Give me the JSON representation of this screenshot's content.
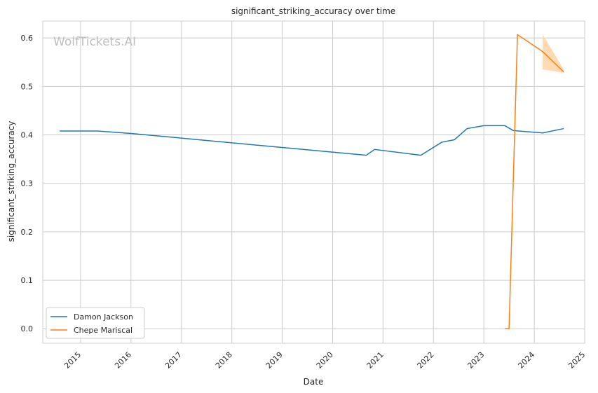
{
  "chart_data": {
    "type": "line",
    "title": "significant_striking_accuracy over time",
    "xlabel": "Date",
    "ylabel": "significant_striking_accuracy",
    "watermark": "WolfTickets.AI",
    "x_ticks": [
      "2015",
      "2016",
      "2017",
      "2018",
      "2019",
      "2020",
      "2021",
      "2022",
      "2023",
      "2024",
      "2025"
    ],
    "y_ticks": [
      "0.0",
      "0.1",
      "0.2",
      "0.3",
      "0.4",
      "0.5",
      "0.6"
    ],
    "xlim": [
      "2014-04",
      "2025-01"
    ],
    "ylim": [
      -0.03,
      0.635
    ],
    "grid": true,
    "legend_position": "lower-left",
    "series": [
      {
        "name": "Damon Jackson",
        "color": "#1f77b4",
        "points": [
          [
            "2014-08",
            0.408
          ],
          [
            "2015-05",
            0.408
          ],
          [
            "2016-01",
            0.403
          ],
          [
            "2020-09",
            0.358
          ],
          [
            "2020-11",
            0.37
          ],
          [
            "2021-10",
            0.358
          ],
          [
            "2022-03",
            0.385
          ],
          [
            "2022-06",
            0.39
          ],
          [
            "2022-09",
            0.413
          ],
          [
            "2023-01",
            0.419
          ],
          [
            "2023-06",
            0.419
          ],
          [
            "2023-08",
            0.409
          ],
          [
            "2024-03",
            0.404
          ],
          [
            "2024-08",
            0.413
          ]
        ]
      },
      {
        "name": "Chepe Mariscal",
        "color": "#ff7f0e",
        "band_color": "#ffd3a6",
        "points": [
          [
            "2023-06",
            0.0
          ],
          [
            "2023-07",
            0.0
          ],
          [
            "2023-09",
            0.607
          ],
          [
            "2024-03",
            0.572
          ],
          [
            "2024-08",
            0.53
          ]
        ],
        "band": [
          [
            "2024-03",
            0.535,
            0.607
          ],
          [
            "2024-08",
            0.528,
            0.535
          ]
        ]
      }
    ]
  }
}
